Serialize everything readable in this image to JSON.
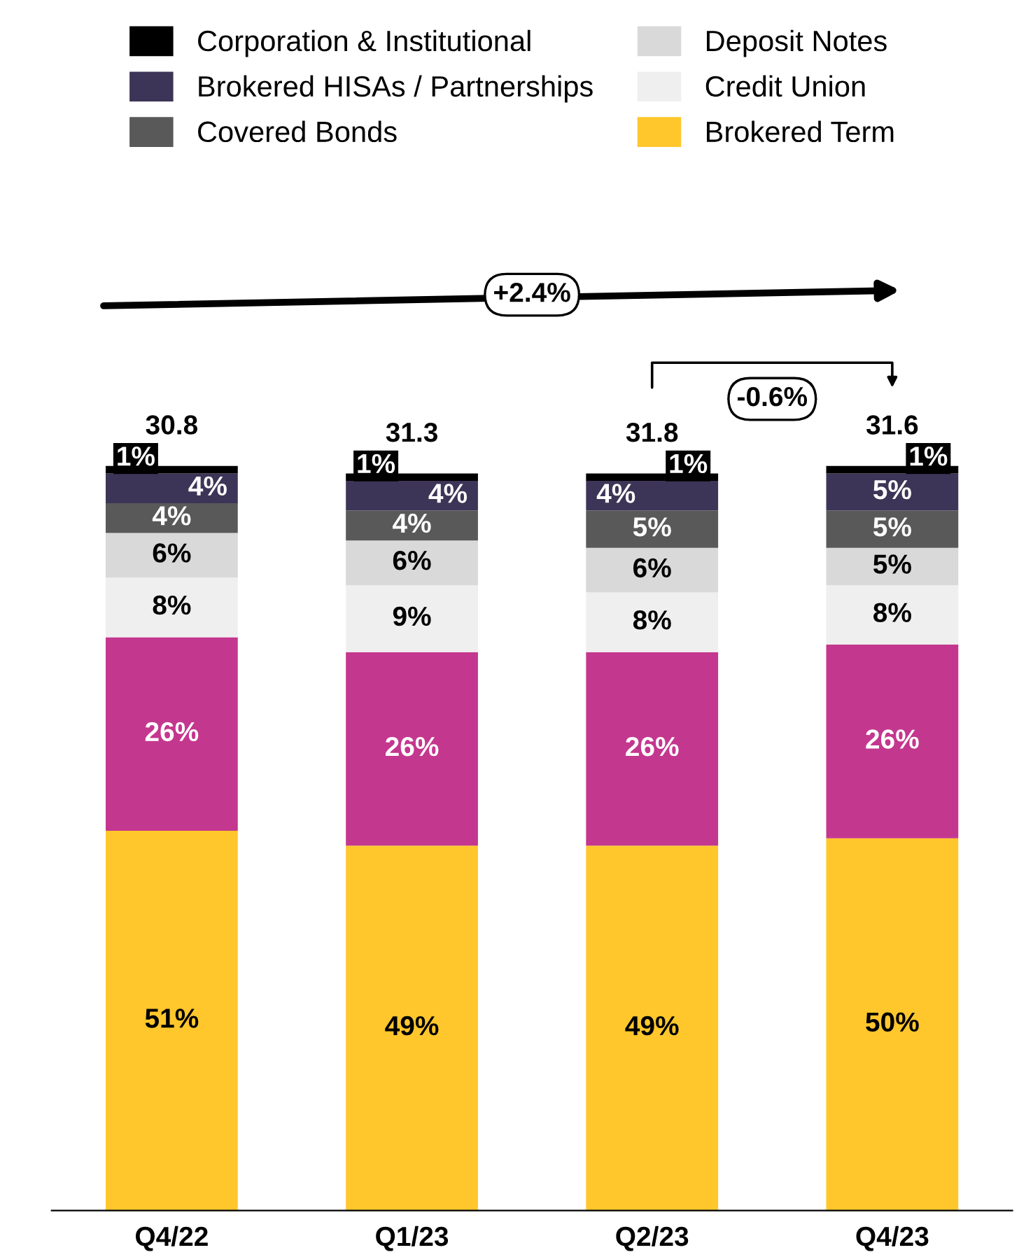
{
  "chart_data": {
    "type": "bar",
    "stacked": true,
    "categories": [
      "Q4/22",
      "Q1/23",
      "Q2/23",
      "Q4/23"
    ],
    "series": [
      {
        "name": "Brokered Term",
        "color": "#ffc72c",
        "values": [
          51,
          49,
          49,
          50
        ],
        "value_labels": [
          "51%",
          "49%",
          "49%",
          "50%"
        ]
      },
      {
        "color": "#c4378f",
        "values": [
          26,
          26,
          26,
          26
        ],
        "value_labels": [
          "26%",
          "26%",
          "26%",
          "26%"
        ]
      },
      {
        "name": "Credit Union",
        "color": "#efefef",
        "values": [
          8,
          9,
          8,
          8
        ],
        "value_labels": [
          "8%",
          "9%",
          "8%",
          "8%"
        ]
      },
      {
        "name": "Deposit Notes",
        "color": "#d9d9d9",
        "values": [
          6,
          6,
          6,
          5
        ],
        "value_labels": [
          "6%",
          "6%",
          "6%",
          "5%"
        ]
      },
      {
        "name": "Covered Bonds",
        "color": "#595959",
        "values": [
          4,
          4,
          5,
          5
        ],
        "value_labels": [
          "4%",
          "4%",
          "5%",
          "5%"
        ]
      },
      {
        "name": "Brokered HISAs / Partnerships",
        "color": "#3d3557",
        "values": [
          4,
          4,
          4,
          5
        ],
        "value_labels": [
          "4%",
          "4%",
          "4%",
          "5%"
        ]
      },
      {
        "name": "Corporation & Institutional",
        "color": "#000000",
        "values": [
          1,
          1,
          1,
          1
        ],
        "value_labels": [
          "1%",
          "1%",
          "1%",
          "1%"
        ]
      }
    ],
    "annotations": [
      "+2.4%",
      "-0.6%",
      {
        "text": "30.8",
        "x": "Q4/22",
        "y": 100
      },
      {
        "text": "31.3",
        "x": "Q1/23",
        "y": 99
      },
      {
        "text": "31.8",
        "x": "Q2/23",
        "y": 99
      },
      {
        "text": "31.6",
        "x": "Q4/23",
        "y": 100
      }
    ],
    "legend": "top"
  }
}
